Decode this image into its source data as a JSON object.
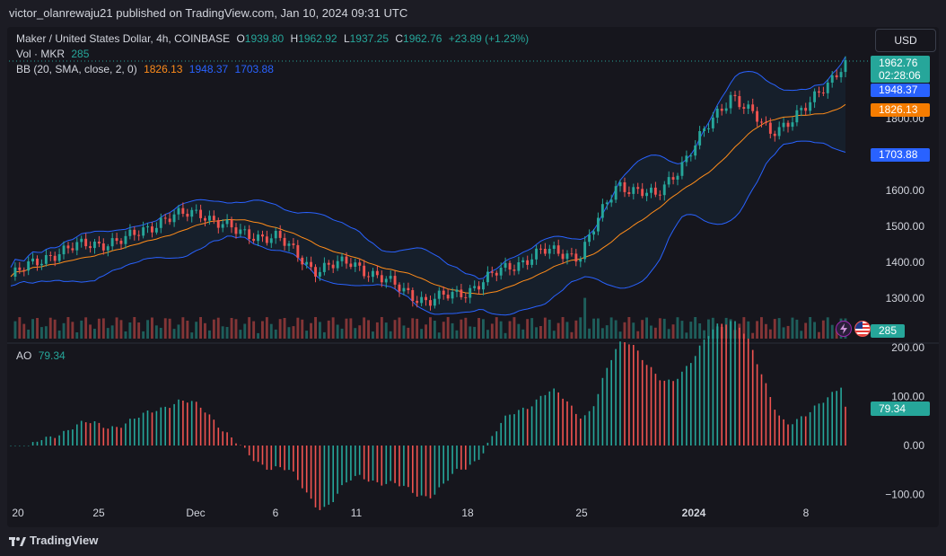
{
  "header": {
    "text": "victor_olanrewaju21 published on TradingView.com, Jan 10, 2024 09:31 UTC"
  },
  "legend": {
    "title": "Maker / United States Dollar, 4h, COINBASE",
    "o_label": "O",
    "o_value": "1939.80",
    "h_label": "H",
    "h_value": "1962.92",
    "l_label": "L",
    "l_value": "1937.25",
    "c_label": "C",
    "c_value": "1962.76",
    "change": "+23.89 (+1.23%)",
    "vol_label": "Vol · MKR",
    "vol_value": "285",
    "bb_label": "BB (20, SMA, close, 2, 0)",
    "bb_basis": "1826.13",
    "bb_upper": "1948.37",
    "bb_lower": "1703.88",
    "ao_label": "AO",
    "ao_value": "79.34"
  },
  "currency_button": "USD",
  "price_tags": {
    "last": "1962.76",
    "countdown": "02:28:06",
    "bb_upper": "1948.37",
    "bb_basis": "1826.13",
    "bb_lower": "1703.88",
    "volume": "285",
    "ao": "79.34"
  },
  "colors": {
    "up": "#26a69a",
    "down": "#ef5350",
    "bb_band": "#2962ff",
    "bb_basis": "#ff8c1a",
    "background": "#16161d"
  },
  "icons": [
    "lightning-icon",
    "us-flag-icon",
    "tradingview-logo-icon"
  ],
  "footer": {
    "brand": "TradingView"
  },
  "chart_data": [
    {
      "type": "candlestick",
      "title": "Maker / United States Dollar, 4h, COINBASE",
      "y_ticks": [
        1300,
        1400,
        1500,
        1600,
        1700,
        1800
      ],
      "y_tick_labels": [
        "1300.00",
        "1400.00",
        "1500.00",
        "1600.00",
        "1700.00",
        "1800.00"
      ],
      "x_tick_labels": [
        "20",
        "25",
        "Dec",
        "6",
        "11",
        "18",
        "25",
        "2024",
        "8"
      ],
      "series": [
        {
          "name": "Price (close, sampled)",
          "x": [
            "Nov 20",
            "Nov 23",
            "Nov 25",
            "Nov 28",
            "Dec 1",
            "Dec 3",
            "Dec 6",
            "Dec 9",
            "Dec 11",
            "Dec 14",
            "Dec 16",
            "Dec 18",
            "Dec 21",
            "Dec 23",
            "Dec 25",
            "Dec 27",
            "Dec 29",
            "Dec 31",
            "Jan 2",
            "Jan 4",
            "Jan 6",
            "Jan 8",
            "Jan 10"
          ],
          "values": [
            1360,
            1420,
            1450,
            1460,
            1520,
            1540,
            1480,
            1470,
            1380,
            1400,
            1340,
            1290,
            1320,
            1380,
            1430,
            1420,
            1620,
            1580,
            1720,
            1870,
            1760,
            1830,
            1962.76
          ]
        },
        {
          "name": "BB (20, SMA, close, 2, 0)",
          "basis_last": 1826.13,
          "upper_last": 1948.37,
          "lower_last": 1703.88
        }
      ]
    },
    {
      "type": "bar",
      "title": "AO",
      "y_ticks": [
        -100,
        0,
        100,
        200
      ],
      "y_tick_labels": [
        "−100.00",
        "0.00",
        "100.00",
        "200.00"
      ],
      "last_value": 79.34
    }
  ]
}
